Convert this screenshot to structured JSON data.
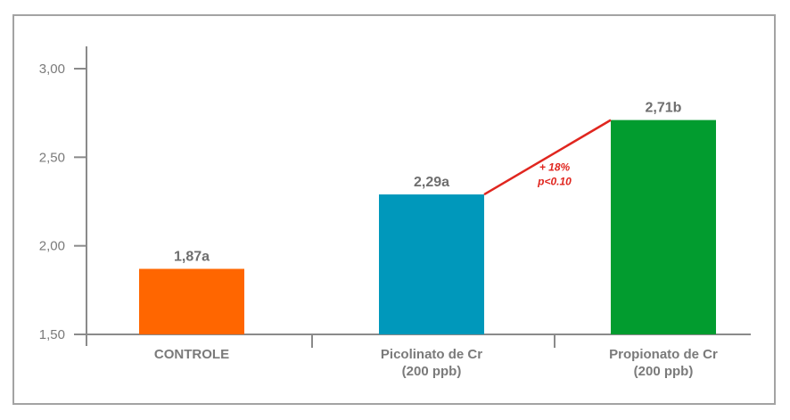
{
  "chart_data": {
    "type": "bar",
    "title": "",
    "xlabel": "",
    "ylabel": "",
    "ylim": [
      1.5,
      3.0
    ],
    "yticks": [
      1.5,
      2.0,
      2.5,
      3.0
    ],
    "ytick_labels": [
      "1,50",
      "2,00",
      "2,50",
      "3,00"
    ],
    "grid": false,
    "categories": [
      {
        "lines": [
          "CONTROLE"
        ]
      },
      {
        "lines": [
          "Picolinato de Cr",
          "(200 ppb)"
        ]
      },
      {
        "lines": [
          "Propionato de Cr",
          "(200 ppb)"
        ]
      }
    ],
    "values": [
      1.87,
      2.29,
      2.71
    ],
    "data_labels": [
      "1,87a",
      "2,29a",
      "2,71b"
    ],
    "colors": [
      "#ff6600",
      "#0098bb",
      "#029c2f"
    ],
    "annotation": {
      "from_category": 1,
      "to_category": 2,
      "color": "#e0261f",
      "lines": [
        "+ 18%",
        "p<0.10"
      ]
    }
  }
}
